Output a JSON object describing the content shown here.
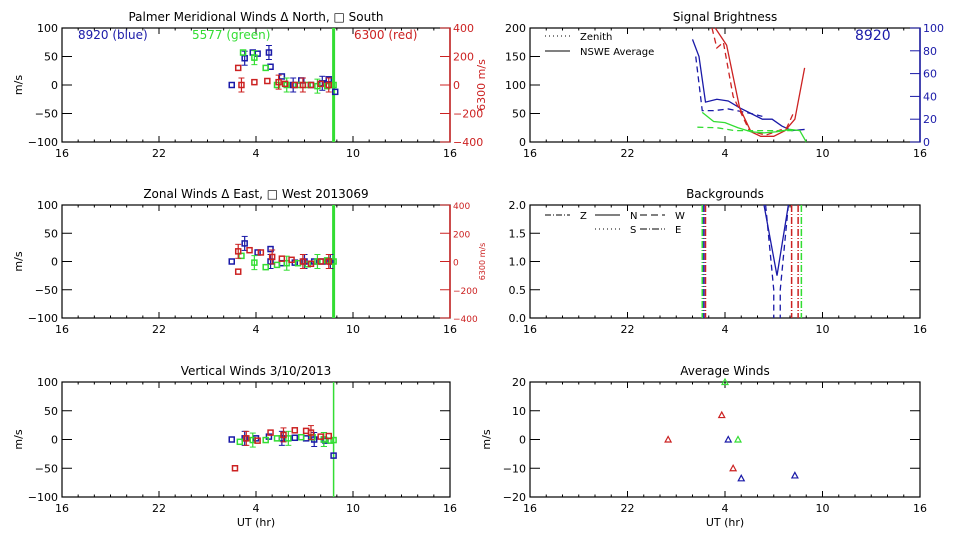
{
  "chart_data": [
    {
      "id": "meridional",
      "type": "scatter",
      "title": "Palmer Meridional Winds Δ North, □ South",
      "xlabel": "",
      "ylabel": "m/s",
      "y2label": "6300 m/s",
      "xlim": [
        16,
        40
      ],
      "ylim": [
        -100,
        100
      ],
      "y2lim": [
        -400,
        400
      ],
      "xticks": [
        16,
        22,
        28,
        34,
        40
      ],
      "xtick_labels": [
        "16",
        "22",
        "4",
        "10",
        "16"
      ],
      "yticks": [
        -100,
        -50,
        0,
        50,
        100
      ],
      "y2ticks": [
        -400,
        -200,
        0,
        200,
        400
      ],
      "annotations": [
        {
          "text": "8920 (blue)",
          "color": "#1a1aa8"
        },
        {
          "text": "5577 (green)",
          "color": "#33dd33"
        },
        {
          "text": "6300 (red)",
          "color": "#cc2222"
        }
      ],
      "vline_x": 32.8,
      "series": [
        {
          "name": "8920",
          "color": "#1a1aa8",
          "points": [
            [
              26.5,
              0
            ],
            [
              27.3,
              47
            ],
            [
              27.8,
              57
            ],
            [
              28.1,
              55
            ],
            [
              28.8,
              57
            ],
            [
              28.9,
              32
            ],
            [
              29.6,
              15
            ],
            [
              30.3,
              0
            ],
            [
              30.8,
              8
            ],
            [
              31.4,
              0
            ],
            [
              32.1,
              3
            ],
            [
              32.5,
              10
            ],
            [
              32.9,
              -12
            ]
          ]
        },
        {
          "name": "5577",
          "color": "#33dd33",
          "points": [
            [
              27.2,
              57
            ],
            [
              27.9,
              48
            ],
            [
              28.6,
              30
            ],
            [
              29.3,
              0
            ],
            [
              29.9,
              0
            ],
            [
              30.6,
              0
            ],
            [
              31.2,
              0
            ],
            [
              31.8,
              -2
            ],
            [
              32.4,
              -2
            ],
            [
              32.8,
              0
            ]
          ]
        },
        {
          "name": "6300",
          "color": "#cc2222",
          "points": [
            [
              26.9,
              30
            ],
            [
              27.1,
              0
            ],
            [
              27.9,
              5
            ],
            [
              28.7,
              7
            ],
            [
              29.4,
              5
            ],
            [
              29.8,
              2
            ],
            [
              30.4,
              0
            ],
            [
              30.9,
              0
            ],
            [
              31.4,
              0
            ],
            [
              32.0,
              2
            ],
            [
              32.5,
              0
            ]
          ]
        }
      ]
    },
    {
      "id": "brightness",
      "type": "line",
      "title": "Signal Brightness",
      "xlim": [
        16,
        40
      ],
      "ylim": [
        0,
        200
      ],
      "y2lim": [
        0,
        100
      ],
      "xticks": [
        16,
        22,
        28,
        34,
        40
      ],
      "xtick_labels": [
        "16",
        "22",
        "4",
        "10",
        "16"
      ],
      "yticks": [
        0,
        50,
        100,
        150,
        200
      ],
      "y2ticks": [
        0,
        20,
        40,
        60,
        80,
        100
      ],
      "annotation": "8920",
      "legend": [
        "Zenith",
        "NSWE Average"
      ],
      "legend_position": "top-left",
      "series": [
        {
          "name": "8920 NSWE",
          "color": "#1a1aa8",
          "style": "solid",
          "points": [
            [
              26.0,
              180
            ],
            [
              26.4,
              150
            ],
            [
              26.8,
              70
            ],
            [
              27.5,
              75
            ],
            [
              28.2,
              72
            ],
            [
              28.9,
              60
            ],
            [
              29.6,
              50
            ],
            [
              30.3,
              40
            ],
            [
              30.9,
              40
            ],
            [
              31.5,
              28
            ],
            [
              32.1,
              20
            ],
            [
              32.9,
              22
            ]
          ]
        },
        {
          "name": "8920 Zenith",
          "color": "#1a1aa8",
          "style": "dashed",
          "points": [
            [
              26.2,
              150
            ],
            [
              26.6,
              55
            ],
            [
              27.3,
              55
            ],
            [
              28.2,
              58
            ],
            [
              29.6,
              50
            ],
            [
              30.3,
              45
            ]
          ]
        },
        {
          "name": "6300 NSWE",
          "color": "#cc2222",
          "style": "solid",
          "points": [
            [
              27.4,
              200
            ],
            [
              28.1,
              170
            ],
            [
              28.9,
              60
            ],
            [
              29.6,
              18
            ],
            [
              30.2,
              10
            ],
            [
              31.0,
              10
            ],
            [
              31.7,
              20
            ],
            [
              32.3,
              40
            ],
            [
              32.9,
              130
            ]
          ]
        },
        {
          "name": "6300 Zenith",
          "color": "#cc2222",
          "style": "dashed",
          "points": [
            [
              27.2,
              200
            ],
            [
              27.5,
              165
            ],
            [
              27.9,
              175
            ],
            [
              28.5,
              80
            ],
            [
              29.5,
              20
            ],
            [
              30.5,
              12
            ],
            [
              31.8,
              25
            ],
            [
              32.2,
              50
            ]
          ]
        },
        {
          "name": "5577 NSWE",
          "color": "#33dd33",
          "style": "solid",
          "points": [
            [
              26.6,
              52
            ],
            [
              27.3,
              36
            ],
            [
              28.0,
              34
            ],
            [
              28.8,
              25
            ],
            [
              29.6,
              18
            ],
            [
              30.4,
              16
            ],
            [
              31.2,
              18
            ],
            [
              32.0,
              22
            ],
            [
              32.6,
              20
            ],
            [
              33.0,
              0
            ]
          ]
        },
        {
          "name": "5577 Zenith",
          "color": "#33dd33",
          "style": "dashed",
          "points": [
            [
              26.3,
              26
            ],
            [
              27.5,
              25
            ],
            [
              28.6,
              20
            ],
            [
              29.6,
              20
            ],
            [
              30.6,
              20
            ],
            [
              31.6,
              20
            ],
            [
              32.4,
              20
            ]
          ]
        }
      ]
    },
    {
      "id": "zonal",
      "type": "scatter",
      "title": "Zonal Winds Δ East, □ West 2013069",
      "ylabel": "m/s",
      "y2label": "6300 m/s",
      "xlim": [
        16,
        40
      ],
      "ylim": [
        -100,
        100
      ],
      "y2lim": [
        -400,
        400
      ],
      "xticks": [
        16,
        22,
        28,
        34,
        40
      ],
      "xtick_labels": [
        "16",
        "22",
        "4",
        "10",
        "16"
      ],
      "yticks": [
        -100,
        -50,
        0,
        50,
        100
      ],
      "y2ticks": [
        -400,
        -200,
        0,
        200,
        400
      ],
      "vline_x": 32.8,
      "series": [
        {
          "name": "8920",
          "color": "#1a1aa8",
          "points": [
            [
              26.5,
              0
            ],
            [
              27.3,
              32
            ],
            [
              28.1,
              16
            ],
            [
              28.9,
              22
            ],
            [
              28.9,
              0
            ],
            [
              29.6,
              -3
            ],
            [
              30.4,
              -2
            ],
            [
              31.0,
              0
            ],
            [
              31.6,
              0
            ],
            [
              32.1,
              0
            ],
            [
              32.6,
              0
            ]
          ]
        },
        {
          "name": "5577",
          "color": "#33dd33",
          "points": [
            [
              27.1,
              10
            ],
            [
              27.9,
              -2
            ],
            [
              28.6,
              -10
            ],
            [
              29.3,
              -6
            ],
            [
              29.9,
              -3
            ],
            [
              30.6,
              -3
            ],
            [
              31.2,
              -5
            ],
            [
              31.8,
              0
            ],
            [
              32.4,
              2
            ],
            [
              32.8,
              0
            ]
          ]
        },
        {
          "name": "6300",
          "color": "#cc2222",
          "points": [
            [
              26.9,
              -18
            ],
            [
              26.9,
              18
            ],
            [
              27.6,
              20
            ],
            [
              28.3,
              16
            ],
            [
              29.0,
              8
            ],
            [
              29.6,
              5
            ],
            [
              30.2,
              3
            ],
            [
              30.9,
              0
            ],
            [
              31.4,
              -4
            ],
            [
              32.0,
              0
            ],
            [
              32.5,
              0
            ]
          ]
        }
      ]
    },
    {
      "id": "backgrounds",
      "type": "line",
      "title": "Backgrounds",
      "xlim": [
        16,
        40
      ],
      "ylim": [
        0.0,
        2.0
      ],
      "xticks": [
        16,
        22,
        28,
        34,
        40
      ],
      "xtick_labels": [
        "16",
        "22",
        "4",
        "10",
        "16"
      ],
      "yticks": [
        0.0,
        0.5,
        1.0,
        1.5,
        2.0
      ],
      "ytick_labels": [
        "0.0",
        "0.5",
        "1.0",
        "1.5",
        "2.0"
      ],
      "legend": [
        "Z",
        "N",
        "W",
        "S",
        "E"
      ],
      "legend_position": "top-left",
      "series": [
        {
          "name": "8920 N",
          "color": "#1a1aa8",
          "style": "solid",
          "points": [
            [
              30.4,
              2.0
            ],
            [
              31.2,
              0.75
            ],
            [
              31.9,
              2.0
            ]
          ]
        },
        {
          "name": "8920 W",
          "color": "#1a1aa8",
          "style": "dashed",
          "points": [
            [
              30.5,
              2.0
            ],
            [
              31.0,
              0.5
            ],
            [
              31.0,
              0.0
            ]
          ]
        },
        {
          "name": "8920 E",
          "color": "#1a1aa8",
          "style": "dashed",
          "points": [
            [
              31.9,
              2.0
            ],
            [
              31.4,
              0.5
            ],
            [
              31.4,
              0.0
            ]
          ]
        }
      ],
      "vlines": [
        {
          "x": 26.6,
          "color": "#33dd33"
        },
        {
          "x": 26.7,
          "color": "#1a1aa8"
        },
        {
          "x": 26.8,
          "color": "#cc2222"
        },
        {
          "x": 32.1,
          "color": "#cc2222"
        },
        {
          "x": 32.5,
          "color": "#cc2222"
        },
        {
          "x": 32.7,
          "color": "#33dd33"
        }
      ]
    },
    {
      "id": "vertical",
      "type": "scatter",
      "title": "Vertical Winds 3/10/2013",
      "xlabel": "UT (hr)",
      "ylabel": "m/s",
      "xlim": [
        16,
        40
      ],
      "ylim": [
        -100,
        100
      ],
      "xticks": [
        16,
        22,
        28,
        34,
        40
      ],
      "xtick_labels": [
        "16",
        "22",
        "4",
        "10",
        "16"
      ],
      "yticks": [
        -100,
        -50,
        0,
        50,
        100
      ],
      "vline_x": 32.8,
      "series": [
        {
          "name": "8920",
          "color": "#1a1aa8",
          "points": [
            [
              26.5,
              0
            ],
            [
              27.3,
              2
            ],
            [
              28.0,
              2
            ],
            [
              28.8,
              5
            ],
            [
              29.6,
              2
            ],
            [
              30.4,
              3
            ],
            [
              31.1,
              2
            ],
            [
              31.6,
              0
            ],
            [
              32.3,
              -2
            ],
            [
              32.8,
              -28
            ],
            [
              32.2,
              0
            ]
          ]
        },
        {
          "name": "5577",
          "color": "#33dd33",
          "points": [
            [
              27.0,
              -4
            ],
            [
              27.8,
              -1
            ],
            [
              28.6,
              -1
            ],
            [
              29.3,
              2
            ],
            [
              30.0,
              2
            ],
            [
              30.8,
              4
            ],
            [
              31.5,
              4
            ],
            [
              32.2,
              0
            ],
            [
              32.6,
              -2
            ],
            [
              32.8,
              -1
            ]
          ]
        },
        {
          "name": "6300",
          "color": "#cc2222",
          "points": [
            [
              26.7,
              -50
            ],
            [
              27.4,
              2
            ],
            [
              28.1,
              -2
            ],
            [
              28.9,
              12
            ],
            [
              29.7,
              8
            ],
            [
              30.4,
              16
            ],
            [
              31.1,
              15
            ],
            [
              31.4,
              12
            ],
            [
              32.0,
              5
            ],
            [
              32.5,
              6
            ]
          ]
        }
      ]
    },
    {
      "id": "average",
      "type": "scatter",
      "title": "Average Winds",
      "xlabel": "UT (hr)",
      "ylabel": "m/s",
      "xlim": [
        16,
        40
      ],
      "ylim": [
        -20,
        20
      ],
      "xticks": [
        16,
        22,
        28,
        34,
        40
      ],
      "xtick_labels": [
        "16",
        "22",
        "4",
        "10",
        "16"
      ],
      "yticks": [
        -20,
        -10,
        0,
        10,
        20
      ],
      "series": [
        {
          "name": "6300",
          "color": "#cc2222",
          "points": [
            [
              24.5,
              0
            ],
            [
              27.8,
              8.5
            ],
            [
              28.5,
              -10
            ]
          ]
        },
        {
          "name": "8920",
          "color": "#1a1aa8",
          "points": [
            [
              28.2,
              0
            ],
            [
              29.0,
              -13.5
            ],
            [
              32.3,
              -12.5
            ]
          ]
        },
        {
          "name": "5577",
          "color": "#33dd33",
          "points": [
            [
              28.0,
              20
            ],
            [
              28.8,
              0
            ]
          ]
        }
      ]
    }
  ]
}
